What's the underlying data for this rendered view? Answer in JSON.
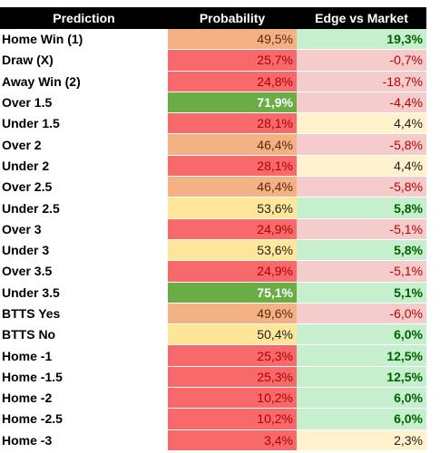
{
  "table": {
    "headers": [
      "Prediction",
      "Probability",
      "Edge vs Market"
    ],
    "rows": [
      {
        "prediction": "Home Win (1)",
        "probability": "49,5%",
        "edge": "19,3%",
        "probability_style": "orange",
        "edge_style": "pos"
      },
      {
        "prediction": "Draw (X)",
        "probability": "25,7%",
        "edge": "-0,7%",
        "probability_style": "red",
        "edge_style": "neg"
      },
      {
        "prediction": "Away Win (2)",
        "probability": "24,8%",
        "edge": "-18,7%",
        "probability_style": "red",
        "edge_style": "neg"
      },
      {
        "prediction": "Over 1.5",
        "probability": "71,9%",
        "edge": "-4,4%",
        "probability_style": "green",
        "edge_style": "neg"
      },
      {
        "prediction": "Under 1.5",
        "probability": "28,1%",
        "edge": "4,4%",
        "probability_style": "red",
        "edge_style": "neutral"
      },
      {
        "prediction": "Over 2",
        "probability": "46,4%",
        "edge": "-5,8%",
        "probability_style": "orange",
        "edge_style": "neg"
      },
      {
        "prediction": "Under 2",
        "probability": "28,1%",
        "edge": "4,4%",
        "probability_style": "red",
        "edge_style": "neutral"
      },
      {
        "prediction": "Over 2.5",
        "probability": "46,4%",
        "edge": "-5,8%",
        "probability_style": "orange",
        "edge_style": "neg"
      },
      {
        "prediction": "Under 2.5",
        "probability": "53,6%",
        "edge": "5,8%",
        "probability_style": "yellow",
        "edge_style": "pos"
      },
      {
        "prediction": "Over 3",
        "probability": "24,9%",
        "edge": "-5,1%",
        "probability_style": "red",
        "edge_style": "neg"
      },
      {
        "prediction": "Under 3",
        "probability": "53,6%",
        "edge": "5,8%",
        "probability_style": "yellow",
        "edge_style": "pos"
      },
      {
        "prediction": "Over 3.5",
        "probability": "24,9%",
        "edge": "-5,1%",
        "probability_style": "red",
        "edge_style": "neg"
      },
      {
        "prediction": "Under 3.5",
        "probability": "75,1%",
        "edge": "5,1%",
        "probability_style": "green",
        "edge_style": "pos"
      },
      {
        "prediction": "BTTS Yes",
        "probability": "49,6%",
        "edge": "-6,0%",
        "probability_style": "orange",
        "edge_style": "neg"
      },
      {
        "prediction": "BTTS No",
        "probability": "50,4%",
        "edge": "6,0%",
        "probability_style": "yellow",
        "edge_style": "pos"
      },
      {
        "prediction": "Home -1",
        "probability": "25,3%",
        "edge": "12,5%",
        "probability_style": "red",
        "edge_style": "pos"
      },
      {
        "prediction": "Home -1.5",
        "probability": "25,3%",
        "edge": "12,5%",
        "probability_style": "red",
        "edge_style": "pos"
      },
      {
        "prediction": "Home -2",
        "probability": "10,2%",
        "edge": "6,0%",
        "probability_style": "red",
        "edge_style": "pos"
      },
      {
        "prediction": "Home -2.5",
        "probability": "10,2%",
        "edge": "6,0%",
        "probability_style": "red",
        "edge_style": "pos"
      },
      {
        "prediction": "Home -3",
        "probability": "3,4%",
        "edge": "2,3%",
        "probability_style": "red",
        "edge_style": "neutral"
      }
    ]
  }
}
